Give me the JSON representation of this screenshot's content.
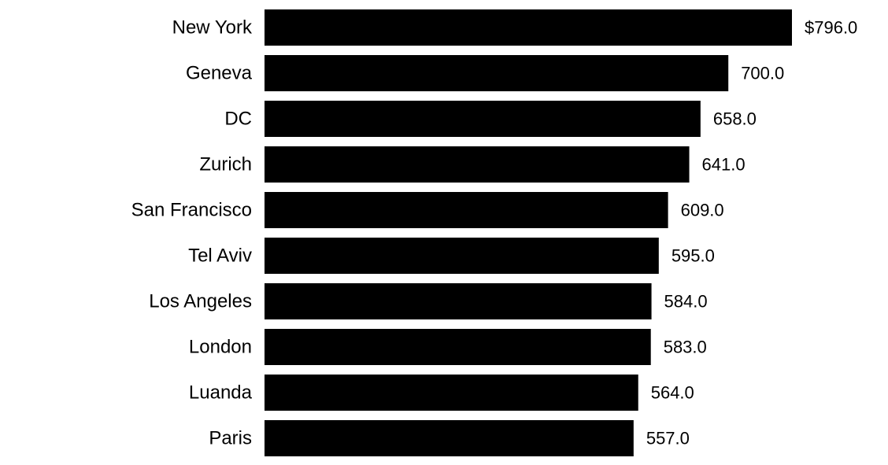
{
  "chart_data": {
    "type": "bar",
    "orientation": "horizontal",
    "categories": [
      "New York",
      "Geneva",
      "DC",
      "Zurich",
      "San Francisco",
      "Tel Aviv",
      "Los Angeles",
      "London",
      "Luanda",
      "Paris"
    ],
    "values": [
      796.0,
      700.0,
      658.0,
      641.0,
      609.0,
      595.0,
      584.0,
      583.0,
      564.0,
      557.0
    ],
    "value_labels": [
      "$796.0",
      "700.0",
      "658.0",
      "641.0",
      "609.0",
      "595.0",
      "584.0",
      "583.0",
      "564.0",
      "557.0"
    ],
    "title": "",
    "xlabel": "",
    "ylabel": "",
    "grid": false,
    "legend": "none",
    "bar_color": "#000000"
  }
}
